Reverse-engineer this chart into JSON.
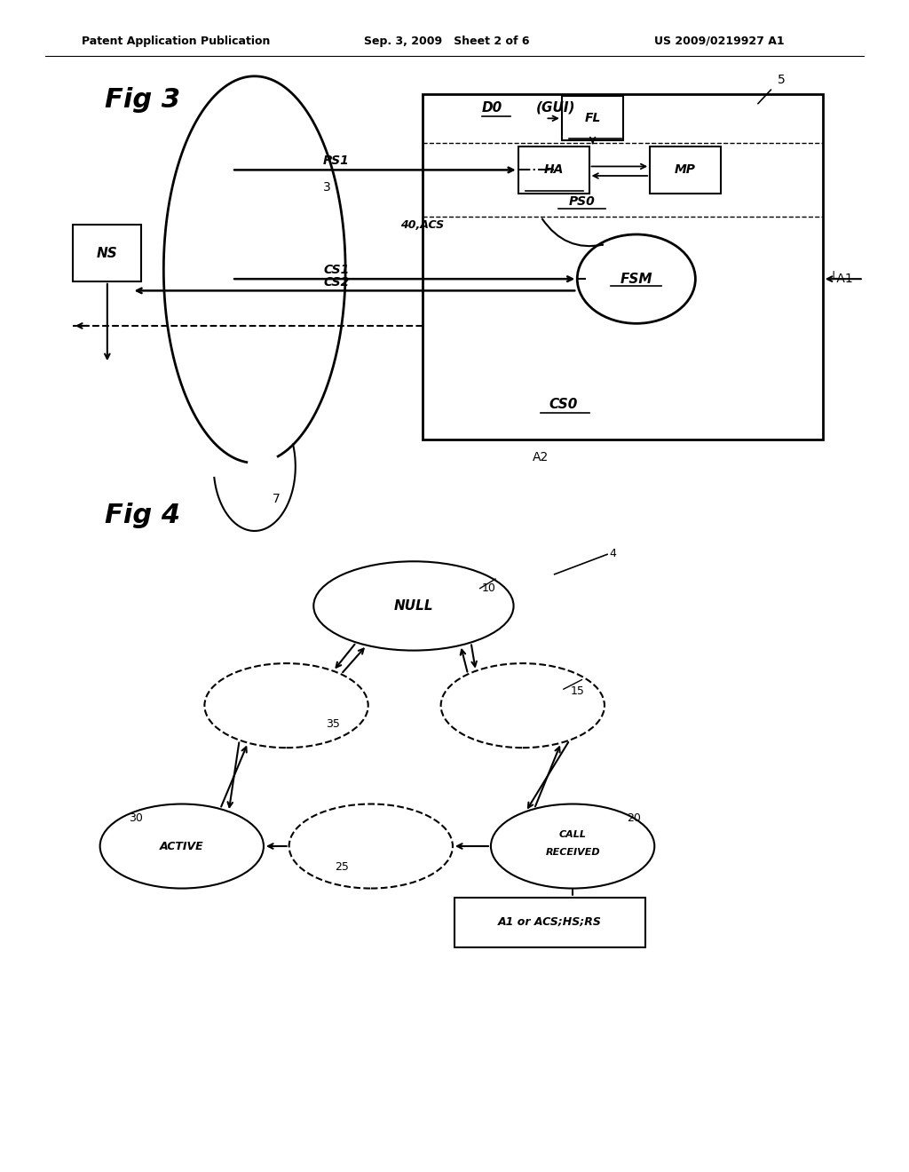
{
  "fig_width": 10.24,
  "fig_height": 13.2,
  "bg_color": "#ffffff",
  "header_left": "Patent Application Publication",
  "header_mid": "Sep. 3, 2009   Sheet 2 of 6",
  "header_right": "US 2009/0219927 A1",
  "fig3_label": "Fig 3",
  "fig4_label": "Fig 4"
}
